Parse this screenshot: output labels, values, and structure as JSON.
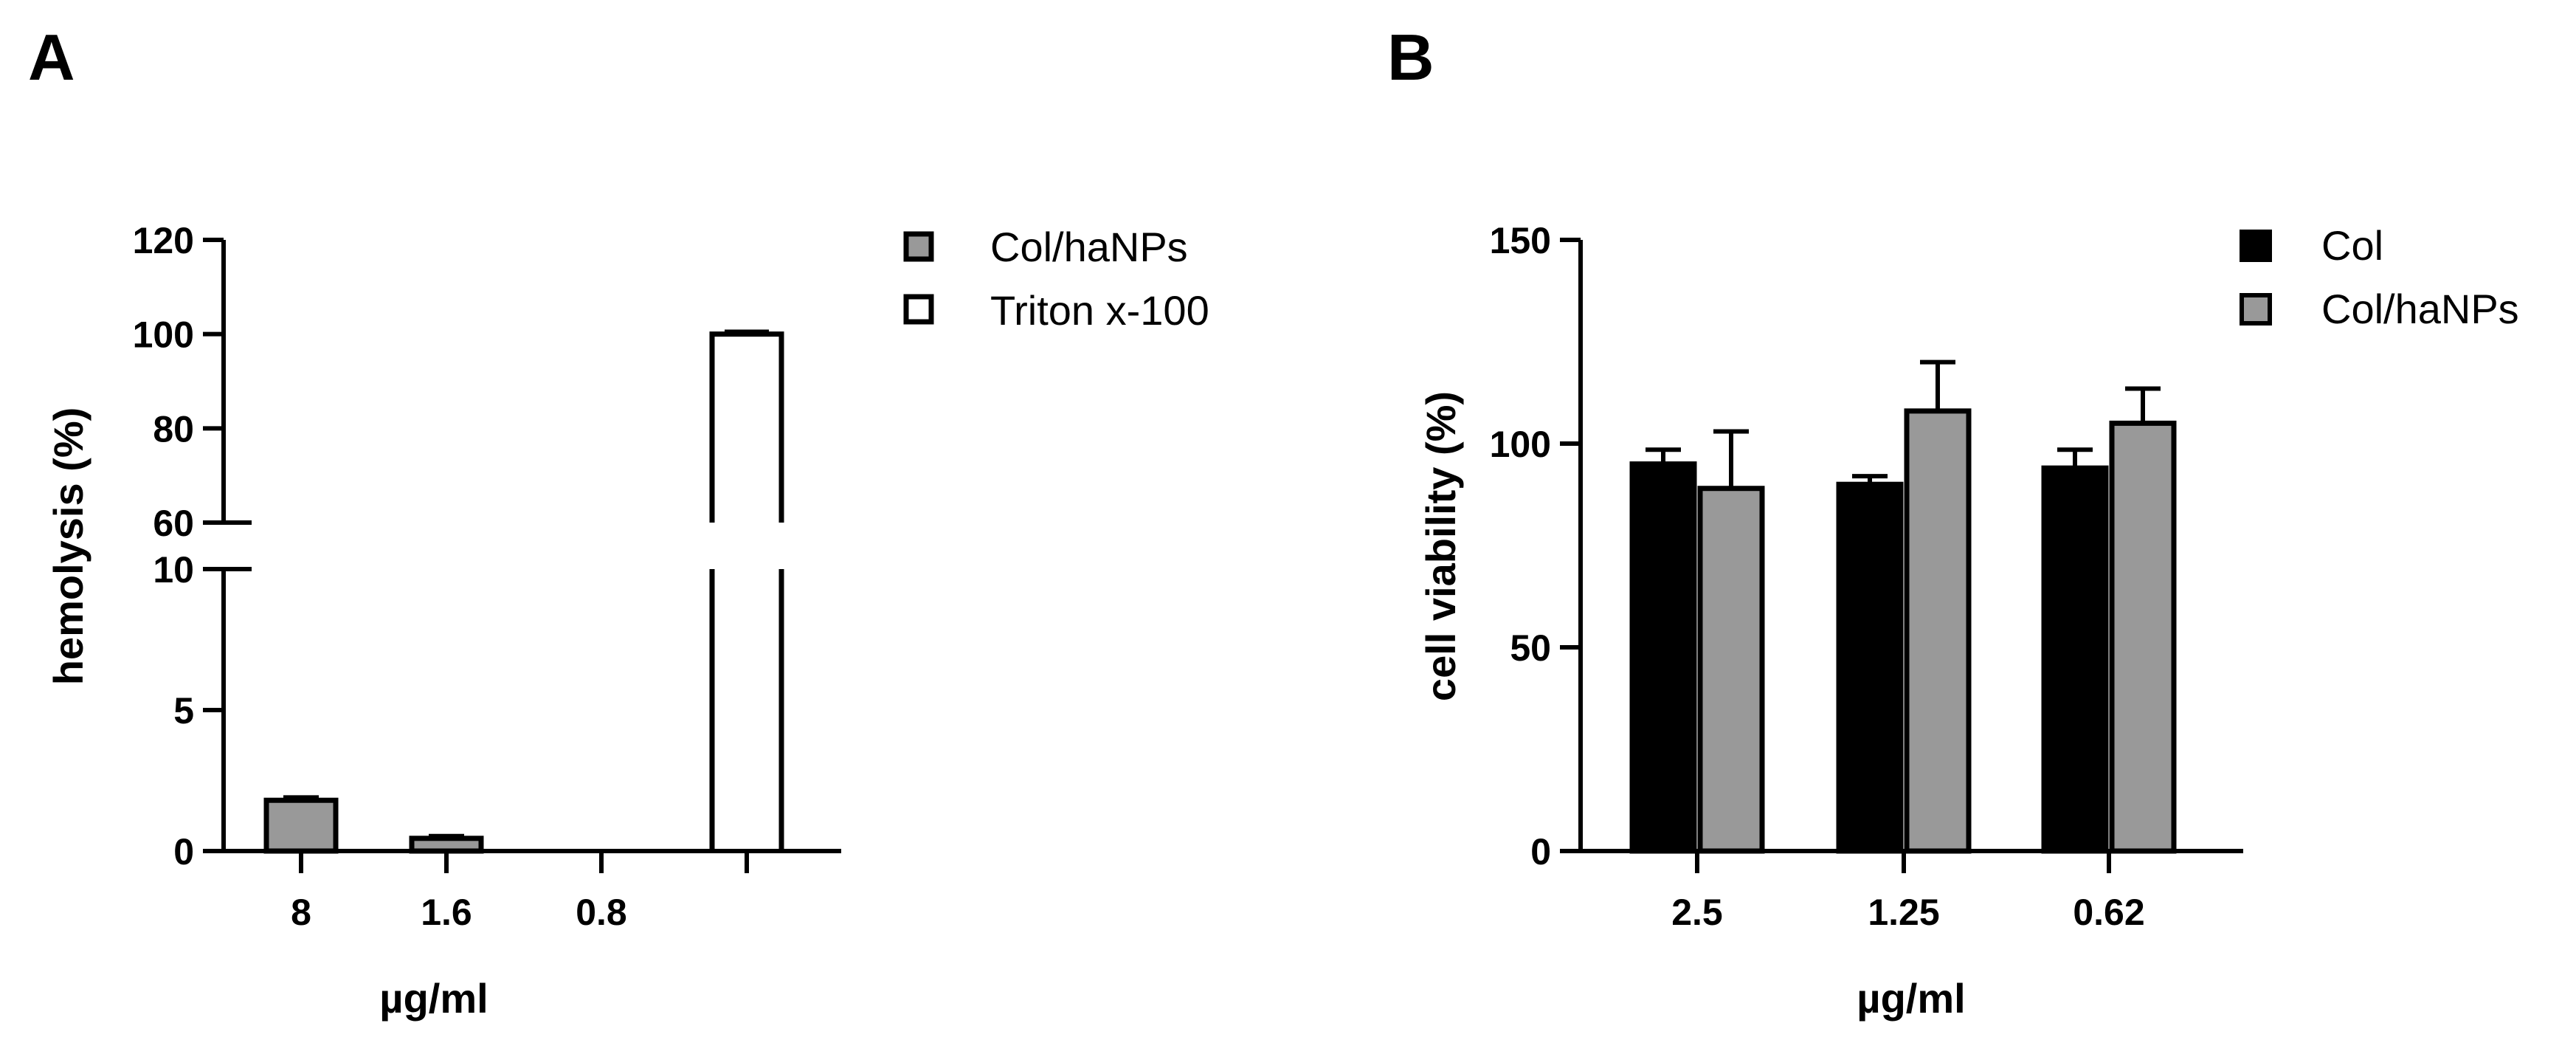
{
  "panels": [
    {
      "letter": "A",
      "ylabel": "hemolysis (%)",
      "xlabel": "µg/ml",
      "legend": [
        {
          "label": "Col/haNPs",
          "color": "#999999"
        },
        {
          "label": "Triton x-100",
          "color": "#ffffff"
        }
      ]
    },
    {
      "letter": "B",
      "ylabel": "cell viability (%)",
      "xlabel": "µg/ml",
      "legend": [
        {
          "label": "Col",
          "color": "#000000"
        },
        {
          "label": "Col/haNPs",
          "color": "#999999"
        }
      ]
    }
  ],
  "chart_data": [
    {
      "type": "bar",
      "panel": "A",
      "categories": [
        "8",
        "1.6",
        "0.8",
        ""
      ],
      "y_axis_break": {
        "lower_range": [
          0,
          10
        ],
        "upper_range": [
          60,
          120
        ]
      },
      "yticks_lower": [
        0,
        5,
        10
      ],
      "yticks_upper": [
        60,
        80,
        100,
        120
      ],
      "series": [
        {
          "name": "Col/haNPs",
          "color": "#999999",
          "values": [
            1.8,
            0.45,
            0.0,
            null
          ],
          "errors": [
            0.1,
            0.08,
            0.0,
            null
          ]
        },
        {
          "name": "Triton x-100",
          "color": "#ffffff",
          "values": [
            null,
            null,
            null,
            100
          ],
          "errors": [
            null,
            null,
            null,
            0.5
          ]
        }
      ],
      "ylabel": "hemolysis (%)",
      "xlabel": "µg/ml",
      "legend_position": "top-right"
    },
    {
      "type": "bar",
      "panel": "B",
      "categories": [
        "2.5",
        "1.25",
        "0.62"
      ],
      "ylim": [
        0,
        150
      ],
      "yticks": [
        0,
        50,
        100,
        150
      ],
      "series": [
        {
          "name": "Col",
          "color": "#000000",
          "values": [
            95,
            90,
            94
          ],
          "errors": [
            3.5,
            2.0,
            4.5
          ]
        },
        {
          "name": "Col/haNPs",
          "color": "#999999",
          "values": [
            89,
            108,
            105
          ],
          "errors": [
            14,
            12,
            8.5
          ]
        }
      ],
      "ylabel": "cell viability (%)",
      "xlabel": "µg/ml",
      "legend_position": "top-right"
    }
  ]
}
